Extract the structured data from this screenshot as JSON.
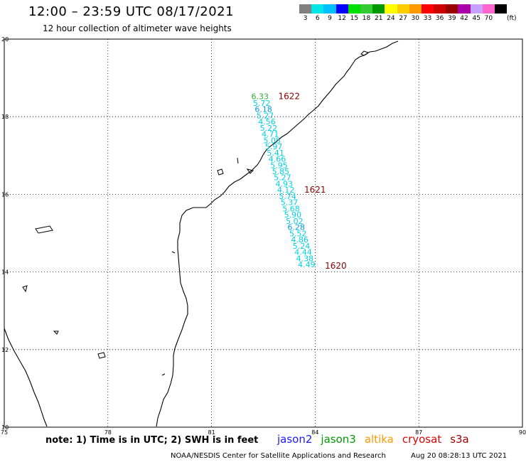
{
  "header": {
    "title": "12:00 – 23:59 UTC 08/17/2021",
    "subtitle": "12 hour collection of altimeter wave heights"
  },
  "legend": {
    "colors": [
      "#808080",
      "#00e5e5",
      "#00bfff",
      "#0000ff",
      "#00e000",
      "#33cc33",
      "#009900",
      "#ffff00",
      "#ffcc00",
      "#ff9900",
      "#ff0000",
      "#cc0000",
      "#990000",
      "#aa00aa",
      "#c8a0ff",
      "#ff66cc",
      "#000000"
    ],
    "labels": [
      "3",
      "6",
      "9",
      "12",
      "15",
      "18",
      "21",
      "24",
      "27",
      "30",
      "33",
      "36",
      "39",
      "42",
      "45",
      "70"
    ],
    "unit": "(ft)"
  },
  "axes": {
    "x_ticks": [
      "75",
      "78",
      "81",
      "84",
      "87",
      "90"
    ],
    "y_ticks": [
      "20",
      "18",
      "16",
      "14",
      "12",
      "10"
    ]
  },
  "tracks": [
    {
      "id": "1622",
      "label": "1622",
      "color": "#8b0000"
    },
    {
      "id": "1621",
      "label": "1621",
      "color": "#8b0000"
    },
    {
      "id": "1620",
      "label": "1620",
      "color": "#8b0000"
    }
  ],
  "wave_heights": [
    {
      "lat": 18.45,
      "lon": 82.15,
      "value": "6.33",
      "color": "#33aa33"
    },
    {
      "lat": 18.28,
      "lon": 82.2,
      "value": "5.72",
      "color": "#00d0e0"
    },
    {
      "lat": 18.12,
      "lon": 82.25,
      "value": "6.18",
      "color": "#0099dd"
    },
    {
      "lat": 17.96,
      "lon": 82.3,
      "value": "5.27",
      "color": "#00d0e0"
    },
    {
      "lat": 17.8,
      "lon": 82.35,
      "value": "4.56",
      "color": "#00d0e0"
    },
    {
      "lat": 17.64,
      "lon": 82.4,
      "value": "5.22",
      "color": "#00d0e0"
    },
    {
      "lat": 17.48,
      "lon": 82.45,
      "value": "4.71",
      "color": "#00d0e0"
    },
    {
      "lat": 17.32,
      "lon": 82.5,
      "value": "5.05",
      "color": "#00d0e0"
    },
    {
      "lat": 17.16,
      "lon": 82.55,
      "value": "5.97",
      "color": "#00d0e0"
    },
    {
      "lat": 17.0,
      "lon": 82.6,
      "value": "5.41",
      "color": "#00d0e0"
    },
    {
      "lat": 16.84,
      "lon": 82.65,
      "value": "4.66",
      "color": "#00d0e0"
    },
    {
      "lat": 16.68,
      "lon": 82.7,
      "value": "5.95",
      "color": "#00d0e0"
    },
    {
      "lat": 16.52,
      "lon": 82.75,
      "value": "5.85",
      "color": "#00d0e0"
    },
    {
      "lat": 16.36,
      "lon": 82.8,
      "value": "5.27",
      "color": "#00d0e0"
    },
    {
      "lat": 16.2,
      "lon": 82.85,
      "value": "4.93",
      "color": "#00d0e0"
    },
    {
      "lat": 16.04,
      "lon": 82.9,
      "value": "4.12",
      "color": "#00d0e0"
    },
    {
      "lat": 15.88,
      "lon": 82.95,
      "value": "5.74",
      "color": "#00d0e0"
    },
    {
      "lat": 15.72,
      "lon": 83.0,
      "value": "5.37",
      "color": "#00d0e0"
    },
    {
      "lat": 15.56,
      "lon": 83.05,
      "value": "5.68",
      "color": "#00d0e0"
    },
    {
      "lat": 15.4,
      "lon": 83.1,
      "value": "5.90",
      "color": "#00d0e0"
    },
    {
      "lat": 15.24,
      "lon": 83.15,
      "value": "5.02",
      "color": "#00d0e0"
    },
    {
      "lat": 15.08,
      "lon": 83.2,
      "value": "6.28",
      "color": "#0099dd"
    },
    {
      "lat": 14.92,
      "lon": 83.25,
      "value": "5.52",
      "color": "#00d0e0"
    },
    {
      "lat": 14.76,
      "lon": 83.3,
      "value": "4.86",
      "color": "#00d0e0"
    },
    {
      "lat": 14.6,
      "lon": 83.35,
      "value": "5.24",
      "color": "#00d0e0"
    },
    {
      "lat": 14.44,
      "lon": 83.4,
      "value": "4.44",
      "color": "#00d0e0"
    },
    {
      "lat": 14.28,
      "lon": 83.45,
      "value": "4.38",
      "color": "#00d0e0"
    },
    {
      "lat": 14.12,
      "lon": 83.5,
      "value": "4.49",
      "color": "#00d0e0"
    }
  ],
  "footer": {
    "note": "note: 1) Time is in UTC; 2) SWH is in feet",
    "satellites": [
      {
        "name": "jason2",
        "color": "#1a1aff"
      },
      {
        "name": "jason3",
        "color": "#009900"
      },
      {
        "name": "altika",
        "color": "#ff9900"
      },
      {
        "name": "cryosat",
        "color": "#dd0000"
      },
      {
        "name": "s3a",
        "color": "#990000"
      }
    ],
    "credit": "NOAA/NESDIS Center for Satellite Applications and Research",
    "timestamp": "Aug 20 08:28:13 UTC 2021"
  }
}
